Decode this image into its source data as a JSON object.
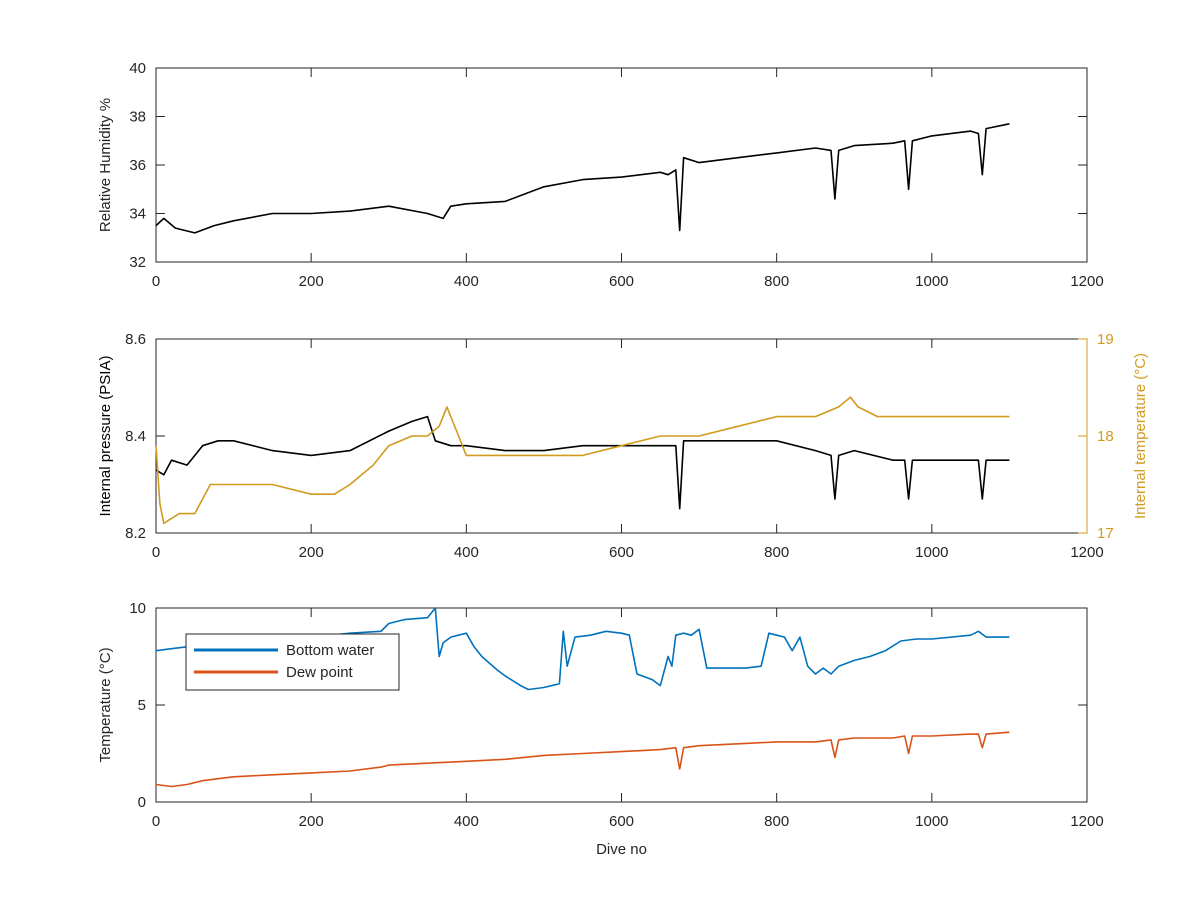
{
  "chart_data": [
    {
      "type": "line",
      "xlabel": "",
      "ylabel": "Relative Humidity %",
      "xlim": [
        0,
        1200
      ],
      "ylim": [
        32,
        40
      ],
      "xticks": [
        "0",
        "200",
        "400",
        "600",
        "800",
        "1000",
        "1200"
      ],
      "yticks": [
        "32",
        "34",
        "36",
        "38",
        "40"
      ],
      "grid": false,
      "series": [
        {
          "color": "#000000",
          "x": [
            0,
            10,
            25,
            50,
            75,
            100,
            150,
            200,
            250,
            300,
            350,
            370,
            380,
            400,
            450,
            500,
            550,
            600,
            650,
            660,
            670,
            675,
            680,
            700,
            750,
            800,
            850,
            870,
            875,
            880,
            900,
            950,
            965,
            970,
            975,
            1000,
            1050,
            1060,
            1065,
            1070,
            1100
          ],
          "y": [
            33.5,
            33.8,
            33.4,
            33.2,
            33.5,
            33.7,
            34.0,
            34.0,
            34.1,
            34.3,
            34.0,
            33.8,
            34.3,
            34.4,
            34.5,
            35.1,
            35.4,
            35.5,
            35.7,
            35.6,
            35.8,
            33.3,
            36.3,
            36.1,
            36.3,
            36.5,
            36.7,
            36.6,
            34.6,
            36.6,
            36.8,
            36.9,
            37.0,
            35.0,
            37.0,
            37.2,
            37.4,
            37.3,
            35.6,
            37.5,
            37.7
          ]
        }
      ]
    },
    {
      "type": "line",
      "xlabel": "",
      "ylabel": "Internal pressure (PSIA)",
      "y2label": "Internal temperature (°C)",
      "xlim": [
        0,
        1200
      ],
      "ylim": [
        8.2,
        8.6
      ],
      "y2lim": [
        17,
        19
      ],
      "xticks": [
        "0",
        "200",
        "400",
        "600",
        "800",
        "1000",
        "1200"
      ],
      "yticks": [
        "8.2",
        "8.4",
        "8.6"
      ],
      "y2ticks": [
        "17",
        "18",
        "19"
      ],
      "grid": false,
      "series": [
        {
          "color": "#000000",
          "axis": "left",
          "x": [
            0,
            10,
            20,
            40,
            60,
            80,
            100,
            150,
            200,
            250,
            300,
            330,
            350,
            360,
            380,
            400,
            450,
            500,
            550,
            600,
            650,
            670,
            675,
            680,
            700,
            750,
            800,
            850,
            870,
            875,
            880,
            900,
            950,
            965,
            970,
            975,
            1000,
            1050,
            1060,
            1065,
            1070,
            1100
          ],
          "y": [
            8.33,
            8.32,
            8.35,
            8.34,
            8.38,
            8.39,
            8.39,
            8.37,
            8.36,
            8.37,
            8.41,
            8.43,
            8.44,
            8.39,
            8.38,
            8.38,
            8.37,
            8.37,
            8.38,
            8.38,
            8.38,
            8.38,
            8.25,
            8.39,
            8.39,
            8.39,
            8.39,
            8.37,
            8.36,
            8.27,
            8.36,
            8.37,
            8.35,
            8.35,
            8.27,
            8.35,
            8.35,
            8.35,
            8.35,
            8.27,
            8.35,
            8.35
          ]
        },
        {
          "color": "#D29A1F",
          "axis": "right",
          "x": [
            0,
            5,
            10,
            30,
            50,
            70,
            100,
            150,
            200,
            230,
            250,
            280,
            300,
            330,
            350,
            365,
            375,
            390,
            400,
            450,
            500,
            550,
            600,
            650,
            700,
            750,
            800,
            850,
            880,
            895,
            905,
            930,
            1000,
            1050,
            1100
          ],
          "y": [
            17.9,
            17.3,
            17.1,
            17.2,
            17.2,
            17.5,
            17.5,
            17.5,
            17.4,
            17.4,
            17.5,
            17.7,
            17.9,
            18.0,
            18.0,
            18.1,
            18.3,
            18.0,
            17.8,
            17.8,
            17.8,
            17.8,
            17.9,
            18.0,
            18.0,
            18.1,
            18.2,
            18.2,
            18.3,
            18.4,
            18.3,
            18.2,
            18.2,
            18.2,
            18.2
          ]
        }
      ]
    },
    {
      "type": "line",
      "xlabel": "Dive no",
      "ylabel": "Temperature (°C)",
      "xlim": [
        0,
        1200
      ],
      "ylim": [
        0,
        10
      ],
      "xticks": [
        "0",
        "200",
        "400",
        "600",
        "800",
        "1000",
        "1200"
      ],
      "yticks": [
        "0",
        "5",
        "10"
      ],
      "grid": false,
      "legend": "top-left",
      "series": [
        {
          "name": "Bottom water",
          "color": "#0072BD",
          "x": [
            0,
            20,
            40,
            60,
            80,
            100,
            150,
            200,
            250,
            290,
            300,
            320,
            350,
            360,
            365,
            370,
            380,
            400,
            410,
            420,
            440,
            450,
            470,
            480,
            500,
            520,
            525,
            530,
            540,
            560,
            580,
            600,
            610,
            620,
            640,
            650,
            660,
            665,
            670,
            680,
            690,
            700,
            710,
            720,
            740,
            760,
            780,
            790,
            800,
            810,
            820,
            830,
            840,
            850,
            860,
            870,
            880,
            900,
            920,
            940,
            960,
            980,
            1000,
            1050,
            1060,
            1070,
            1100
          ],
          "y": [
            7.8,
            7.9,
            8.0,
            8.5,
            8.4,
            8.4,
            8.5,
            8.5,
            8.7,
            8.8,
            9.2,
            9.4,
            9.5,
            10.0,
            7.5,
            8.2,
            8.5,
            8.7,
            8.0,
            7.5,
            6.8,
            6.5,
            6.0,
            5.8,
            5.9,
            6.1,
            8.8,
            7.0,
            8.5,
            8.6,
            8.8,
            8.7,
            8.6,
            6.6,
            6.3,
            6.0,
            7.5,
            7.0,
            8.6,
            8.7,
            8.6,
            8.9,
            6.9,
            6.9,
            6.9,
            6.9,
            7.0,
            8.7,
            8.6,
            8.5,
            7.8,
            8.5,
            7.0,
            6.6,
            6.9,
            6.6,
            7.0,
            7.3,
            7.5,
            7.8,
            8.3,
            8.4,
            8.4,
            8.6,
            8.8,
            8.5,
            8.5
          ]
        },
        {
          "name": "Dew point",
          "color": "#D95319",
          "x": [
            0,
            20,
            40,
            60,
            80,
            100,
            150,
            200,
            250,
            290,
            300,
            350,
            400,
            450,
            500,
            550,
            600,
            650,
            670,
            675,
            680,
            700,
            750,
            800,
            850,
            870,
            875,
            880,
            900,
            950,
            965,
            970,
            975,
            1000,
            1050,
            1060,
            1065,
            1070,
            1100
          ],
          "y": [
            0.9,
            0.8,
            0.9,
            1.1,
            1.2,
            1.3,
            1.4,
            1.5,
            1.6,
            1.8,
            1.9,
            2.0,
            2.1,
            2.2,
            2.4,
            2.5,
            2.6,
            2.7,
            2.8,
            1.7,
            2.8,
            2.9,
            3.0,
            3.1,
            3.1,
            3.2,
            2.3,
            3.2,
            3.3,
            3.3,
            3.4,
            2.5,
            3.4,
            3.4,
            3.5,
            3.5,
            2.8,
            3.5,
            3.6
          ]
        }
      ]
    }
  ]
}
